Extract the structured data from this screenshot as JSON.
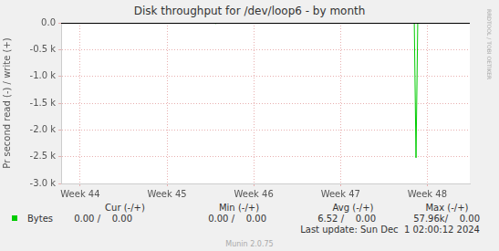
{
  "chart_data": {
    "type": "line",
    "title": "Disk throughput for /dev/loop6 - by month",
    "y_label": "Pr second read (-) / write (+)",
    "x": [
      43.78,
      45.55,
      45.56,
      45.57,
      47.85,
      47.87,
      47.89,
      48.49
    ],
    "series": [
      {
        "name": "Bytes",
        "color": "#00cc00",
        "values": [
          0,
          0,
          -20,
          0,
          0,
          -2520,
          0,
          0
        ]
      }
    ],
    "xlim": [
      43.78,
      48.49
    ],
    "xticks": [
      {
        "value": 44,
        "label": "Week 44"
      },
      {
        "value": 45,
        "label": "Week 45"
      },
      {
        "value": 46,
        "label": "Week 46"
      },
      {
        "value": 47,
        "label": "Week 47"
      },
      {
        "value": 48,
        "label": "Week 48"
      }
    ],
    "ylim": [
      -3000,
      0
    ],
    "yticks": [
      {
        "value": -3000,
        "label": "-3.0 k"
      },
      {
        "value": -2500,
        "label": "-2.5 k"
      },
      {
        "value": -2000,
        "label": "-2.0 k"
      },
      {
        "value": -1500,
        "label": "-1.5 k"
      },
      {
        "value": -1000,
        "label": "-1.0 k"
      },
      {
        "value": -500,
        "label": "-0.5 k"
      },
      {
        "value": 0,
        "label": "0.0"
      }
    ],
    "grid": true,
    "legend_table": {
      "columns": [
        "Cur (-/+)",
        "Min (-/+)",
        "Avg (-/+)",
        "Max (-/+)"
      ],
      "rows": [
        {
          "name": "Bytes",
          "cells": [
            "0.00 /    0.00",
            "0.00 /    0.00",
            "6.52 /    0.00",
            "57.96k/    0.00"
          ]
        }
      ]
    },
    "last_update": "Last update: Sun Dec  1 02:00:12 2024",
    "footer": "Munin 2.0.75",
    "side_text": "RRDTOOL / TOBI OETIKER"
  }
}
